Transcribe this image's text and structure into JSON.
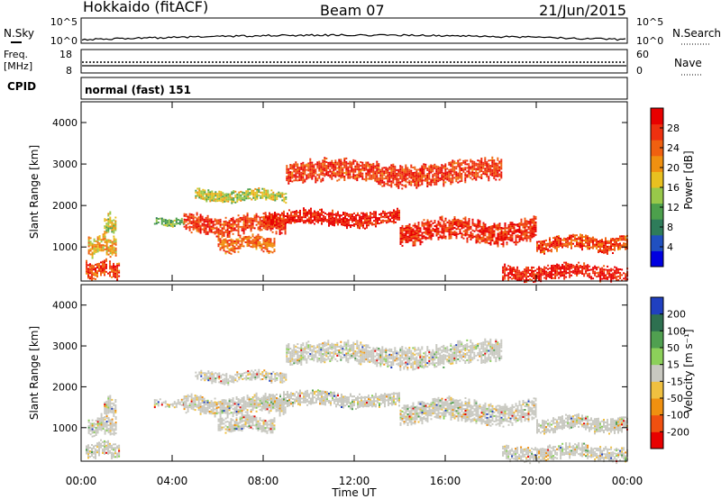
{
  "header": {
    "station": "Hokkaido (fitACF)",
    "beam": "Beam 07",
    "date": "21/Jun/2015"
  },
  "top_panel": {
    "left_label": "N.Sky",
    "right_label": "N.Search",
    "left_ticks": [
      "10^5",
      "10^0"
    ],
    "right_ticks": [
      "10^5",
      "10^0"
    ]
  },
  "freq_panel": {
    "left_label_1": "Freq.",
    "left_label_2": "[MHz]",
    "right_label": "Nave",
    "left_ticks": [
      "18",
      "8"
    ],
    "right_ticks": [
      "60",
      "0"
    ]
  },
  "cpid_panel": {
    "label": "CPID",
    "mode_text": "normal (fast) 151"
  },
  "chart_data": [
    {
      "type": "heatmap",
      "quantity": "Power",
      "colorbar_label": "Power [dB]",
      "colorbar_ticks": [
        "28",
        "24",
        "20",
        "16",
        "12",
        "8",
        "4"
      ],
      "colorbar_range": [
        0,
        32
      ],
      "ylabel": "Slant Range [km]",
      "yticks": [
        "4000",
        "3000",
        "2000",
        "1000"
      ],
      "ylim": [
        180,
        4500
      ],
      "xlim": [
        0,
        24
      ],
      "xticks": [
        "00:00",
        "04:00",
        "08:00",
        "12:00",
        "16:00",
        "20:00",
        "00:00"
      ],
      "echo_regions": [
        {
          "t0": 0.2,
          "t1": 1.7,
          "r0": 260,
          "r1": 700,
          "level": 26
        },
        {
          "t0": 0.3,
          "t1": 1.5,
          "r0": 800,
          "r1": 1300,
          "level": 20
        },
        {
          "t0": 1.0,
          "t1": 1.5,
          "r0": 1300,
          "r1": 1800,
          "level": 16
        },
        {
          "t0": 3.2,
          "t1": 4.5,
          "r0": 1500,
          "r1": 1700,
          "level": 12
        },
        {
          "t0": 4.5,
          "t1": 9.0,
          "r0": 1300,
          "r1": 1800,
          "level": 27
        },
        {
          "t0": 8.0,
          "t1": 14.0,
          "r0": 1500,
          "r1": 1900,
          "level": 29
        },
        {
          "t0": 14.0,
          "t1": 20.0,
          "r0": 1100,
          "r1": 1700,
          "level": 28
        },
        {
          "t0": 20.0,
          "t1": 24.0,
          "r0": 900,
          "r1": 1300,
          "level": 26
        },
        {
          "t0": 6.0,
          "t1": 8.5,
          "r0": 900,
          "r1": 1300,
          "level": 24
        },
        {
          "t0": 9.0,
          "t1": 18.5,
          "r0": 2500,
          "r1": 3100,
          "level": 27
        },
        {
          "t0": 18.5,
          "t1": 24.0,
          "r0": 200,
          "r1": 600,
          "level": 29
        },
        {
          "t0": 5.0,
          "t1": 9.0,
          "r0": 2100,
          "r1": 2400,
          "level": 16
        }
      ]
    },
    {
      "type": "heatmap",
      "quantity": "Velocity",
      "colorbar_label": "Velocity [m s⁻¹]",
      "colorbar_ticks": [
        "200",
        "100",
        "50",
        "15",
        "-15",
        "-50",
        "-100",
        "-200"
      ],
      "ylabel": "Slant Range [km]",
      "yticks": [
        "4000",
        "3000",
        "2000",
        "1000"
      ],
      "ylim": [
        180,
        4500
      ],
      "xlim": [
        0,
        24
      ],
      "xlabel": "Time UT",
      "xticks": [
        "00:00",
        "04:00",
        "08:00",
        "12:00",
        "16:00",
        "20:00",
        "00:00"
      ]
    }
  ],
  "colors": {
    "power_scale": [
      "#0000e0",
      "#2050c0",
      "#2e7c5a",
      "#4ca04c",
      "#98c84a",
      "#e8c020",
      "#f09010",
      "#f06010",
      "#ee3010",
      "#e80000"
    ],
    "velocity_scale": [
      "#e80000",
      "#f05010",
      "#f09010",
      "#f0c040",
      "#c8c8c0",
      "#8cd05a",
      "#50a050",
      "#2e7050",
      "#2040c0"
    ]
  }
}
